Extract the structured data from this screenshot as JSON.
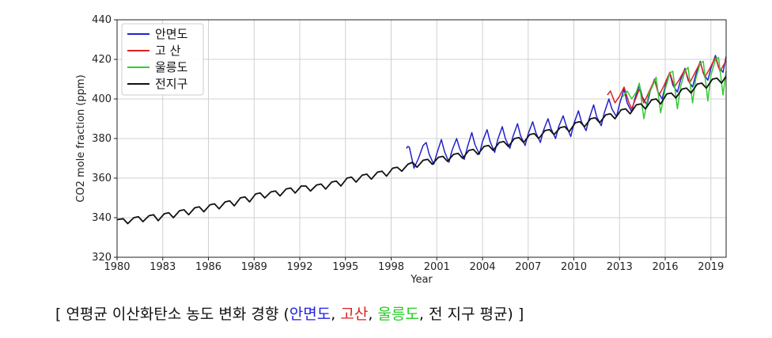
{
  "chart_data": {
    "type": "line",
    "title": "",
    "xlabel": "Year",
    "ylabel": "CO2 mole fraction (ppm)",
    "xlim": [
      1980,
      2020
    ],
    "ylim": [
      320,
      440
    ],
    "x_ticks": [
      "1980",
      "1983",
      "1986",
      "1989",
      "1992",
      "1995",
      "1998",
      "2001",
      "2004",
      "2007",
      "2010",
      "2013",
      "2016",
      "2019"
    ],
    "y_ticks": [
      "320",
      "340",
      "360",
      "380",
      "400",
      "420",
      "440"
    ],
    "grid": true,
    "legend_position": "top-left",
    "series": [
      {
        "name": "안면도",
        "color": "#2222cc",
        "points": [
          [
            1999.0,
            375.0
          ],
          [
            1999.1,
            376.0
          ],
          [
            1999.2,
            375.5
          ],
          [
            1999.5,
            365.0
          ],
          [
            1999.8,
            370.0
          ],
          [
            2000.1,
            376.5
          ],
          [
            2000.3,
            378.0
          ],
          [
            2000.5,
            372.0
          ],
          [
            2000.8,
            367.0
          ],
          [
            2001.0,
            372.5
          ],
          [
            2001.3,
            379.5
          ],
          [
            2001.5,
            373.5
          ],
          [
            2001.8,
            368.0
          ],
          [
            2002.0,
            374.0
          ],
          [
            2002.3,
            380.0
          ],
          [
            2002.5,
            375.0
          ],
          [
            2002.8,
            369.5
          ],
          [
            2003.0,
            375.5
          ],
          [
            2003.3,
            383.0
          ],
          [
            2003.5,
            377.0
          ],
          [
            2003.8,
            372.0
          ],
          [
            2004.0,
            378.5
          ],
          [
            2004.3,
            384.5
          ],
          [
            2004.5,
            378.5
          ],
          [
            2004.8,
            373.0
          ],
          [
            2005.0,
            379.5
          ],
          [
            2005.3,
            386.0
          ],
          [
            2005.5,
            380.0
          ],
          [
            2005.8,
            375.0
          ],
          [
            2006.0,
            381.0
          ],
          [
            2006.3,
            387.5
          ],
          [
            2006.5,
            381.5
          ],
          [
            2006.8,
            376.5
          ],
          [
            2007.0,
            382.5
          ],
          [
            2007.3,
            388.5
          ],
          [
            2007.5,
            383.0
          ],
          [
            2007.8,
            378.0
          ],
          [
            2008.0,
            384.0
          ],
          [
            2008.3,
            390.0
          ],
          [
            2008.5,
            385.0
          ],
          [
            2008.8,
            380.0
          ],
          [
            2009.0,
            386.0
          ],
          [
            2009.3,
            391.5
          ],
          [
            2009.5,
            386.5
          ],
          [
            2009.8,
            381.0
          ],
          [
            2010.0,
            387.5
          ],
          [
            2010.3,
            394.0
          ],
          [
            2010.5,
            388.5
          ],
          [
            2010.8,
            384.0
          ],
          [
            2011.0,
            390.0
          ],
          [
            2011.3,
            397.0
          ],
          [
            2011.5,
            391.0
          ],
          [
            2011.8,
            386.5
          ],
          [
            2012.0,
            393.0
          ],
          [
            2012.3,
            400.0
          ],
          [
            2012.5,
            395.0
          ],
          [
            2012.8,
            391.0
          ],
          [
            2013.0,
            397.5
          ],
          [
            2013.3,
            405.0
          ],
          [
            2013.5,
            398.0
          ],
          [
            2013.8,
            393.5
          ],
          [
            2014.0,
            400.0
          ],
          [
            2014.3,
            407.0
          ],
          [
            2014.5,
            401.0
          ],
          [
            2014.8,
            397.0
          ],
          [
            2015.0,
            403.5
          ],
          [
            2015.3,
            410.0
          ],
          [
            2015.5,
            404.0
          ],
          [
            2015.8,
            400.0
          ],
          [
            2016.0,
            406.5
          ],
          [
            2016.3,
            413.0
          ],
          [
            2016.5,
            407.0
          ],
          [
            2016.8,
            403.5
          ],
          [
            2017.0,
            409.5
          ],
          [
            2017.3,
            415.5
          ],
          [
            2017.5,
            409.5
          ],
          [
            2017.8,
            406.0
          ],
          [
            2018.0,
            412.0
          ],
          [
            2018.3,
            419.0
          ],
          [
            2018.5,
            413.0
          ],
          [
            2018.8,
            409.5
          ],
          [
            2019.0,
            415.5
          ],
          [
            2019.3,
            422.0
          ],
          [
            2019.5,
            416.0
          ],
          [
            2019.8,
            413.5
          ],
          [
            2020.0,
            421.5
          ]
        ]
      },
      {
        "name": "고 산",
        "color": "#dd2222",
        "points": [
          [
            2012.2,
            402.0
          ],
          [
            2012.4,
            404.0
          ],
          [
            2012.7,
            398.0
          ],
          [
            2013.0,
            401.5
          ],
          [
            2013.3,
            406.0
          ],
          [
            2013.6,
            398.5
          ],
          [
            2013.8,
            395.0
          ],
          [
            2014.0,
            399.0
          ],
          [
            2014.3,
            405.0
          ],
          [
            2014.6,
            398.0
          ],
          [
            2014.9,
            403.0
          ],
          [
            2015.3,
            409.5
          ],
          [
            2015.6,
            402.0
          ],
          [
            2015.9,
            406.5
          ],
          [
            2016.3,
            413.5
          ],
          [
            2016.6,
            406.0
          ],
          [
            2016.9,
            409.5
          ],
          [
            2017.3,
            415.0
          ],
          [
            2017.6,
            408.0
          ],
          [
            2017.9,
            412.5
          ],
          [
            2018.3,
            418.5
          ],
          [
            2018.6,
            411.0
          ],
          [
            2018.9,
            415.0
          ],
          [
            2019.3,
            421.0
          ],
          [
            2019.6,
            414.0
          ],
          [
            2019.9,
            418.0
          ],
          [
            2020.0,
            420.0
          ]
        ]
      },
      {
        "name": "울릉도",
        "color": "#33cc33",
        "points": [
          [
            2013.2,
            401.0
          ],
          [
            2013.5,
            404.0
          ],
          [
            2013.8,
            400.0
          ],
          [
            2014.1,
            403.5
          ],
          [
            2014.3,
            408.0
          ],
          [
            2014.6,
            390.0
          ],
          [
            2014.9,
            402.0
          ],
          [
            2015.2,
            407.0
          ],
          [
            2015.4,
            411.0
          ],
          [
            2015.7,
            393.0
          ],
          [
            2016.0,
            405.0
          ],
          [
            2016.3,
            413.0
          ],
          [
            2016.5,
            414.0
          ],
          [
            2016.8,
            395.0
          ],
          [
            2017.0,
            406.0
          ],
          [
            2017.3,
            414.0
          ],
          [
            2017.5,
            416.0
          ],
          [
            2017.8,
            398.0
          ],
          [
            2018.0,
            410.0
          ],
          [
            2018.3,
            418.0
          ],
          [
            2018.5,
            419.0
          ],
          [
            2018.8,
            399.0
          ],
          [
            2019.0,
            412.0
          ],
          [
            2019.3,
            420.0
          ],
          [
            2019.5,
            421.0
          ],
          [
            2019.8,
            402.0
          ],
          [
            2020.0,
            414.0
          ]
        ]
      },
      {
        "name": "전지구",
        "color": "#111111",
        "points": [
          [
            1980.0,
            339.0
          ],
          [
            1980.4,
            339.5
          ],
          [
            1980.7,
            337.0
          ],
          [
            1981.1,
            340.0
          ],
          [
            1981.4,
            340.5
          ],
          [
            1981.7,
            338.0
          ],
          [
            1982.1,
            341.0
          ],
          [
            1982.4,
            341.5
          ],
          [
            1982.7,
            338.5
          ],
          [
            1983.1,
            342.0
          ],
          [
            1983.4,
            342.5
          ],
          [
            1983.7,
            340.0
          ],
          [
            1984.1,
            343.5
          ],
          [
            1984.4,
            344.0
          ],
          [
            1984.7,
            341.5
          ],
          [
            1985.1,
            345.0
          ],
          [
            1985.4,
            345.5
          ],
          [
            1985.7,
            343.0
          ],
          [
            1986.1,
            346.5
          ],
          [
            1986.4,
            347.0
          ],
          [
            1986.7,
            344.5
          ],
          [
            1987.1,
            348.0
          ],
          [
            1987.4,
            348.5
          ],
          [
            1987.7,
            346.0
          ],
          [
            1988.1,
            350.0
          ],
          [
            1988.4,
            350.5
          ],
          [
            1988.7,
            348.0
          ],
          [
            1989.1,
            352.0
          ],
          [
            1989.4,
            352.5
          ],
          [
            1989.7,
            350.0
          ],
          [
            1990.1,
            353.0
          ],
          [
            1990.4,
            353.5
          ],
          [
            1990.7,
            351.0
          ],
          [
            1991.1,
            354.5
          ],
          [
            1991.4,
            355.0
          ],
          [
            1991.7,
            352.5
          ],
          [
            1992.1,
            356.0
          ],
          [
            1992.4,
            356.0
          ],
          [
            1992.7,
            353.5
          ],
          [
            1993.1,
            356.5
          ],
          [
            1993.4,
            357.0
          ],
          [
            1993.7,
            354.5
          ],
          [
            1994.1,
            358.0
          ],
          [
            1994.4,
            358.5
          ],
          [
            1994.7,
            356.0
          ],
          [
            1995.1,
            360.0
          ],
          [
            1995.4,
            360.5
          ],
          [
            1995.7,
            358.0
          ],
          [
            1996.1,
            361.5
          ],
          [
            1996.4,
            362.0
          ],
          [
            1996.7,
            359.5
          ],
          [
            1997.1,
            363.0
          ],
          [
            1997.4,
            363.5
          ],
          [
            1997.7,
            361.0
          ],
          [
            1998.1,
            365.0
          ],
          [
            1998.4,
            365.5
          ],
          [
            1998.7,
            363.5
          ],
          [
            1999.1,
            367.0
          ],
          [
            1999.4,
            368.0
          ],
          [
            1999.7,
            365.5
          ],
          [
            2000.1,
            369.0
          ],
          [
            2000.4,
            369.5
          ],
          [
            2000.7,
            367.0
          ],
          [
            2001.1,
            370.5
          ],
          [
            2001.4,
            371.0
          ],
          [
            2001.7,
            368.5
          ],
          [
            2002.1,
            372.0
          ],
          [
            2002.4,
            372.5
          ],
          [
            2002.7,
            370.0
          ],
          [
            2003.1,
            374.0
          ],
          [
            2003.4,
            374.5
          ],
          [
            2003.7,
            372.0
          ],
          [
            2004.1,
            376.0
          ],
          [
            2004.4,
            376.5
          ],
          [
            2004.7,
            374.0
          ],
          [
            2005.1,
            378.0
          ],
          [
            2005.4,
            378.5
          ],
          [
            2005.7,
            376.0
          ],
          [
            2006.1,
            380.0
          ],
          [
            2006.4,
            380.5
          ],
          [
            2006.7,
            378.0
          ],
          [
            2007.1,
            382.0
          ],
          [
            2007.4,
            382.5
          ],
          [
            2007.7,
            380.0
          ],
          [
            2008.1,
            384.0
          ],
          [
            2008.4,
            384.5
          ],
          [
            2008.7,
            382.0
          ],
          [
            2009.1,
            385.5
          ],
          [
            2009.4,
            386.0
          ],
          [
            2009.7,
            383.5
          ],
          [
            2010.1,
            388.0
          ],
          [
            2010.4,
            388.5
          ],
          [
            2010.7,
            386.0
          ],
          [
            2011.1,
            390.0
          ],
          [
            2011.4,
            390.5
          ],
          [
            2011.7,
            388.0
          ],
          [
            2012.1,
            392.0
          ],
          [
            2012.4,
            392.5
          ],
          [
            2012.7,
            390.0
          ],
          [
            2013.1,
            394.5
          ],
          [
            2013.4,
            395.0
          ],
          [
            2013.7,
            392.5
          ],
          [
            2014.1,
            397.0
          ],
          [
            2014.4,
            397.5
          ],
          [
            2014.7,
            395.0
          ],
          [
            2015.1,
            399.5
          ],
          [
            2015.4,
            400.0
          ],
          [
            2015.7,
            397.5
          ],
          [
            2016.1,
            402.5
          ],
          [
            2016.4,
            403.0
          ],
          [
            2016.7,
            400.5
          ],
          [
            2017.1,
            405.0
          ],
          [
            2017.4,
            405.5
          ],
          [
            2017.7,
            403.0
          ],
          [
            2018.1,
            407.5
          ],
          [
            2018.4,
            408.0
          ],
          [
            2018.7,
            405.5
          ],
          [
            2019.1,
            410.0
          ],
          [
            2019.4,
            410.5
          ],
          [
            2019.7,
            408.0
          ],
          [
            2020.0,
            411.5
          ]
        ]
      }
    ]
  },
  "caption": {
    "open": "[ 연평균 이산화탄소 농도 변화 경향 (",
    "s1": "안면도",
    "sep1": ", ",
    "s2": "고산",
    "sep2": ", ",
    "s3": "울릉도",
    "tail": ", 전 지구 평균) ]",
    "colors": {
      "s1": "#2222dd",
      "s2": "#dd2222",
      "s3": "#22cc22"
    }
  }
}
